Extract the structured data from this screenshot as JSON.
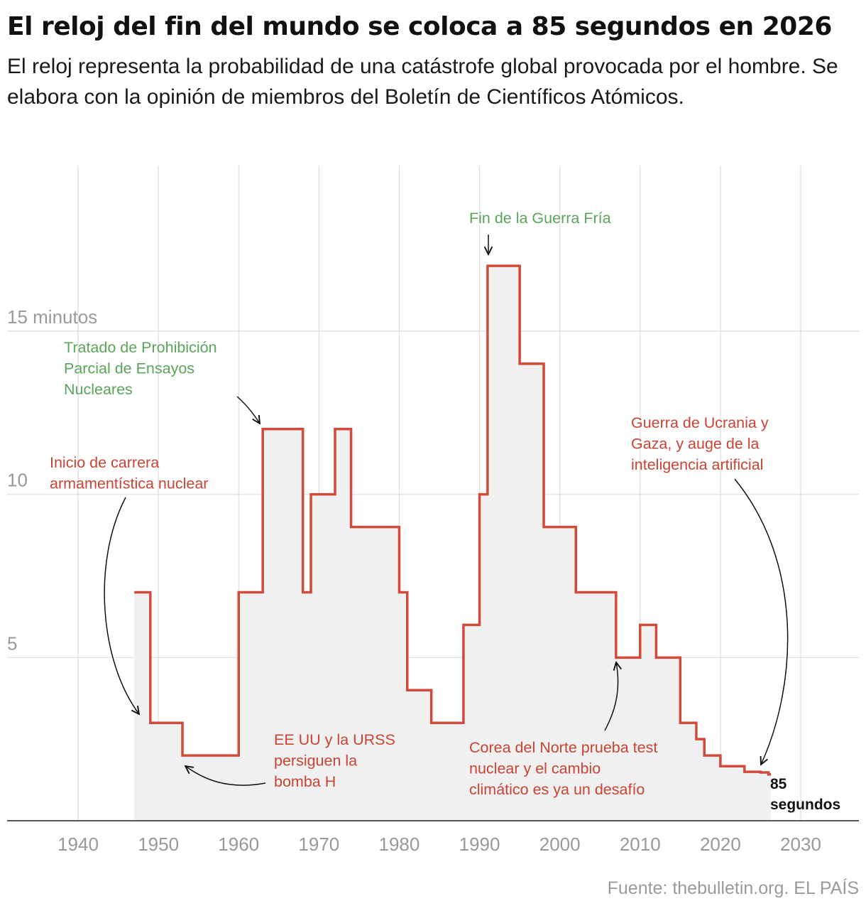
{
  "title": "El reloj del fin del mundo se coloca a 85 segundos en 2026",
  "subtitle": "El reloj representa la probabilidad de una catástrofe global provocada por el hombre. Se elabora con la opinión de miembros del Boletín de Científicos Atómicos.",
  "source": "Fuente: thebulletin.org. EL PAÍS",
  "colors": {
    "line": "#d24a3a",
    "fill": "#f0f0f0",
    "grid": "#dddddd",
    "red_text": "#c94434",
    "green_text": "#5aa55a",
    "axis_text": "#999999"
  },
  "chart_data": {
    "type": "area",
    "step": true,
    "title": "El reloj del fin del mundo se coloca a 85 segundos en 2026",
    "xlabel": "",
    "ylabel": "",
    "xlim": [
      1933,
      2038
    ],
    "ylim": [
      0,
      20
    ],
    "x_ticks": [
      1940,
      1950,
      1960,
      1970,
      1980,
      1990,
      2000,
      2010,
      2020,
      2030
    ],
    "x_tick_labels": [
      "1940",
      "1950",
      "1960",
      "1970",
      "1980",
      "1990",
      "2000",
      "2010",
      "2020",
      "2030"
    ],
    "y_ticks": [
      5,
      10,
      15
    ],
    "y_tick_labels": [
      "5",
      "10",
      "15 minutos"
    ],
    "grid": true,
    "x": [
      1947,
      1949,
      1953,
      1960,
      1963,
      1968,
      1969,
      1972,
      1974,
      1980,
      1981,
      1984,
      1988,
      1990,
      1991,
      1995,
      1998,
      2002,
      2007,
      2010,
      2012,
      2015,
      2017,
      2018,
      2020,
      2023,
      2025,
      2026
    ],
    "y": [
      7,
      3,
      2,
      7,
      12,
      7,
      10,
      12,
      9,
      7,
      4,
      3,
      6,
      10,
      17,
      14,
      9,
      7,
      5,
      6,
      5,
      3,
      2.5,
      2,
      1.67,
      1.5,
      1.48,
      1.42
    ],
    "x_end": 2026.3,
    "annotations": [
      {
        "text": "Tratado de Prohibición Parcial de Ensayos Nucleares",
        "lines": [
          "Tratado de Prohibición",
          "Parcial de Ensayos",
          "Nucleares"
        ],
        "color": "green",
        "x": 1963,
        "y": 12
      },
      {
        "text": "Inicio de carrera armamentística nuclear",
        "lines": [
          "Inicio de carrera",
          "armamentística nuclear"
        ],
        "color": "red",
        "x": 1947,
        "y": 3
      },
      {
        "text": "EE UU y la URSS persiguen la bomba H",
        "lines": [
          "EE UU y la URSS",
          "persiguen la",
          "bomba H"
        ],
        "color": "red",
        "x": 1953,
        "y": 2
      },
      {
        "text": "Fin de la Guerra Fría",
        "lines": [
          "Fin de la Guerra Fría"
        ],
        "color": "green",
        "x": 1991,
        "y": 17
      },
      {
        "text": "Corea del Norte prueba test nuclear y el cambio climático es ya un desafío",
        "lines": [
          "Corea del Norte prueba test",
          "nuclear y el cambio",
          "climático es ya un desafío"
        ],
        "color": "red",
        "x": 2007,
        "y": 5
      },
      {
        "text": "Guerra de Ucrania y Gaza, y auge de la inteligencia artificial",
        "lines": [
          "Guerra de Ucrania y",
          "Gaza, y auge de la",
          "inteligencia artificial"
        ],
        "color": "red",
        "x": 2025,
        "y": 1.5
      }
    ],
    "end_label": {
      "lines": [
        "85",
        "segundos"
      ],
      "text": "85 segundos",
      "value_seconds": 85
    }
  }
}
